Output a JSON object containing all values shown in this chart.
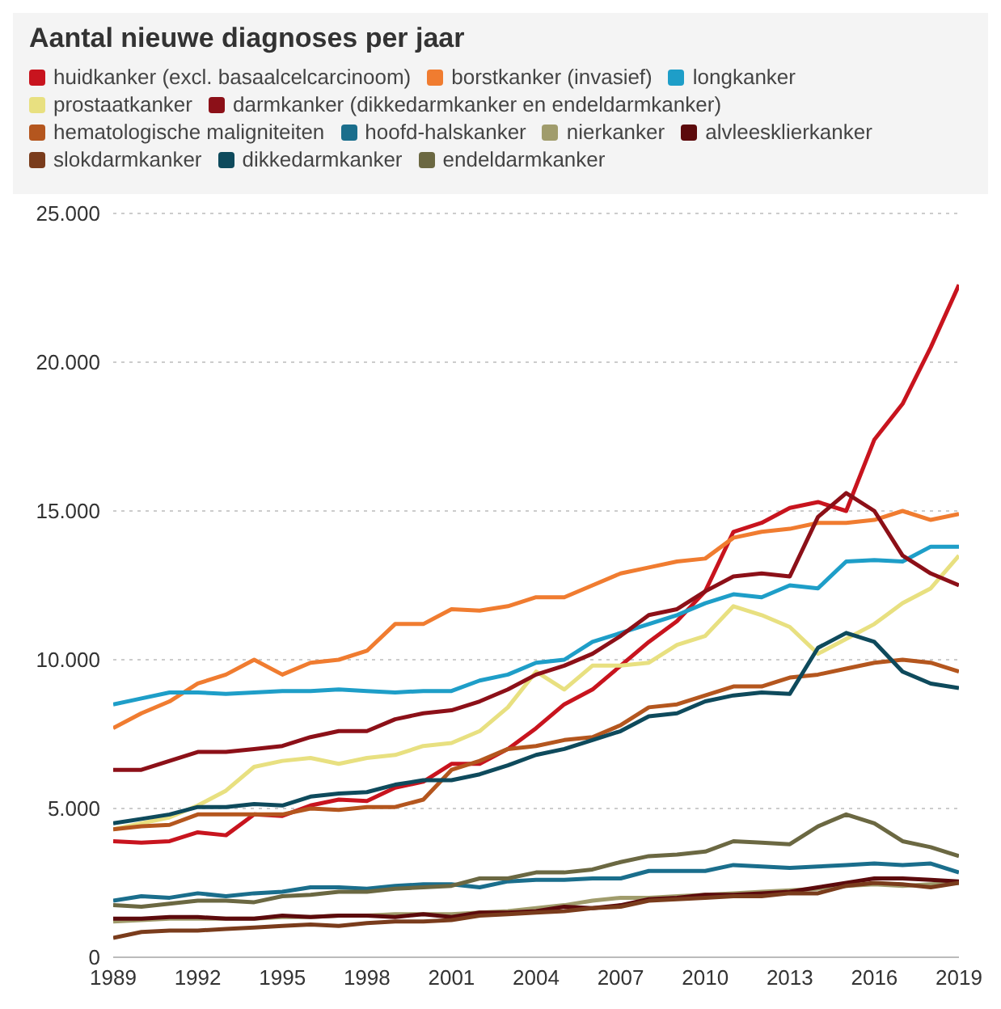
{
  "chart_data": {
    "type": "line",
    "title": "Aantal nieuwe diagnoses per jaar",
    "x": [
      1989,
      1990,
      1991,
      1992,
      1993,
      1994,
      1995,
      1996,
      1997,
      1998,
      1999,
      2000,
      2001,
      2002,
      2003,
      2004,
      2005,
      2006,
      2007,
      2008,
      2009,
      2010,
      2011,
      2012,
      2013,
      2014,
      2015,
      2016,
      2017,
      2018,
      2019
    ],
    "xlim": [
      1989,
      2019
    ],
    "xticks": [
      1989,
      1992,
      1995,
      1998,
      2001,
      2004,
      2007,
      2010,
      2013,
      2016,
      2019
    ],
    "ylim": [
      0,
      25000
    ],
    "yticks": [
      0,
      {
        "value": 5000,
        "label": "5.000"
      },
      {
        "value": 10000,
        "label": "10.000"
      },
      {
        "value": 15000,
        "label": "15.000"
      },
      {
        "value": 20000,
        "label": "20.000"
      },
      {
        "value": 25000,
        "label": "25.000"
      }
    ],
    "grid": "y",
    "legend": "top",
    "marker": "none",
    "line_style": "solid",
    "series": [
      {
        "name": "huidkanker (excl. basaalcelcarcinoom)",
        "color": "#c8141e",
        "values": [
          3900,
          3850,
          3900,
          4200,
          4100,
          4800,
          4750,
          5100,
          5300,
          5250,
          5700,
          5900,
          6500,
          6500,
          7000,
          7700,
          8500,
          9000,
          9800,
          10600,
          11300,
          12300,
          14300,
          14600,
          15100,
          15300,
          15000,
          17400,
          18600,
          20500,
          22600
        ]
      },
      {
        "name": "borstkanker (invasief)",
        "color": "#f07c30",
        "values": [
          7700,
          8200,
          8600,
          9200,
          9500,
          10000,
          9500,
          9900,
          10000,
          10300,
          11200,
          11200,
          11700,
          11650,
          11800,
          12100,
          12100,
          12500,
          12900,
          13100,
          13300,
          13400,
          14100,
          14300,
          14400,
          14600,
          14600,
          14700,
          15000,
          14700,
          14900
        ]
      },
      {
        "name": "longkanker",
        "color": "#1e9ec8",
        "values": [
          8500,
          8700,
          8900,
          8900,
          8850,
          8900,
          8950,
          8950,
          9000,
          8950,
          8900,
          8950,
          8950,
          9300,
          9500,
          9900,
          10000,
          10600,
          10900,
          11200,
          11500,
          11900,
          12200,
          12100,
          12500,
          12400,
          13300,
          13350,
          13300,
          13800,
          13800
        ]
      },
      {
        "name": "prostaatkanker",
        "color": "#e8e080",
        "values": [
          4300,
          4500,
          4700,
          5100,
          5600,
          6400,
          6600,
          6700,
          6500,
          6700,
          6800,
          7100,
          7200,
          7600,
          8400,
          9600,
          9000,
          9800,
          9800,
          9900,
          10500,
          10800,
          11800,
          11500,
          11100,
          10200,
          10700,
          11200,
          11900,
          12400,
          13500
        ]
      },
      {
        "name": "darmkanker (dikkedarmkanker en endeldarmkanker)",
        "color": "#8c1018",
        "values": [
          6300,
          6300,
          6600,
          6900,
          6900,
          7000,
          7100,
          7400,
          7600,
          7600,
          8000,
          8200,
          8300,
          8600,
          9000,
          9500,
          9800,
          10200,
          10800,
          11500,
          11700,
          12300,
          12800,
          12900,
          12800,
          14800,
          15600,
          15000,
          13500,
          12900,
          12500
        ]
      },
      {
        "name": "hematologische maligniteiten",
        "color": "#b4561e",
        "values": [
          4300,
          4400,
          4450,
          4800,
          4800,
          4800,
          4800,
          5000,
          4950,
          5050,
          5050,
          5300,
          6300,
          6600,
          7000,
          7100,
          7300,
          7400,
          7800,
          8400,
          8500,
          8800,
          9100,
          9100,
          9400,
          9500,
          9700,
          9900,
          10000,
          9900,
          9600
        ]
      },
      {
        "name": "hoofd-halskanker",
        "color": "#1a6e8c",
        "values": [
          1900,
          2050,
          2000,
          2150,
          2050,
          2150,
          2200,
          2350,
          2350,
          2300,
          2400,
          2450,
          2450,
          2350,
          2550,
          2600,
          2600,
          2650,
          2650,
          2900,
          2900,
          2900,
          3100,
          3050,
          3000,
          3050,
          3100,
          3150,
          3100,
          3150,
          2850
        ]
      },
      {
        "name": "nierkanker",
        "color": "#a09c6c",
        "values": [
          1200,
          1250,
          1300,
          1300,
          1300,
          1300,
          1350,
          1350,
          1400,
          1400,
          1450,
          1450,
          1450,
          1500,
          1550,
          1650,
          1750,
          1900,
          2000,
          2000,
          2050,
          2100,
          2150,
          2200,
          2250,
          2300,
          2400,
          2450,
          2400,
          2450,
          2500
        ]
      },
      {
        "name": "alvleesklierkanker",
        "color": "#5c0a0c",
        "values": [
          1300,
          1300,
          1350,
          1350,
          1300,
          1300,
          1400,
          1350,
          1400,
          1400,
          1350,
          1450,
          1350,
          1500,
          1500,
          1550,
          1700,
          1650,
          1750,
          1950,
          2000,
          2100,
          2100,
          2150,
          2200,
          2350,
          2500,
          2650,
          2650,
          2600,
          2550
        ]
      },
      {
        "name": "slokdarmkanker",
        "color": "#7a3c1c",
        "values": [
          650,
          850,
          900,
          900,
          950,
          1000,
          1050,
          1100,
          1050,
          1150,
          1200,
          1200,
          1250,
          1400,
          1450,
          1500,
          1550,
          1650,
          1700,
          1900,
          1950,
          2000,
          2050,
          2050,
          2150,
          2150,
          2400,
          2500,
          2450,
          2350,
          2500
        ]
      },
      {
        "name": "dikkedarmkanker",
        "color": "#0e4a5c",
        "values": [
          4500,
          4650,
          4800,
          5050,
          5050,
          5150,
          5100,
          5400,
          5500,
          5550,
          5800,
          5950,
          5950,
          6150,
          6450,
          6800,
          7000,
          7300,
          7600,
          8100,
          8200,
          8600,
          8800,
          8900,
          8850,
          10400,
          10900,
          10600,
          9600,
          9200,
          9050
        ]
      },
      {
        "name": "endeldarmkanker",
        "color": "#6b6842",
        "values": [
          1750,
          1700,
          1800,
          1900,
          1900,
          1850,
          2050,
          2100,
          2200,
          2200,
          2300,
          2350,
          2400,
          2650,
          2650,
          2850,
          2850,
          2950,
          3200,
          3400,
          3450,
          3550,
          3900,
          3850,
          3800,
          4400,
          4800,
          4500,
          3900,
          3700,
          3400
        ]
      }
    ]
  }
}
